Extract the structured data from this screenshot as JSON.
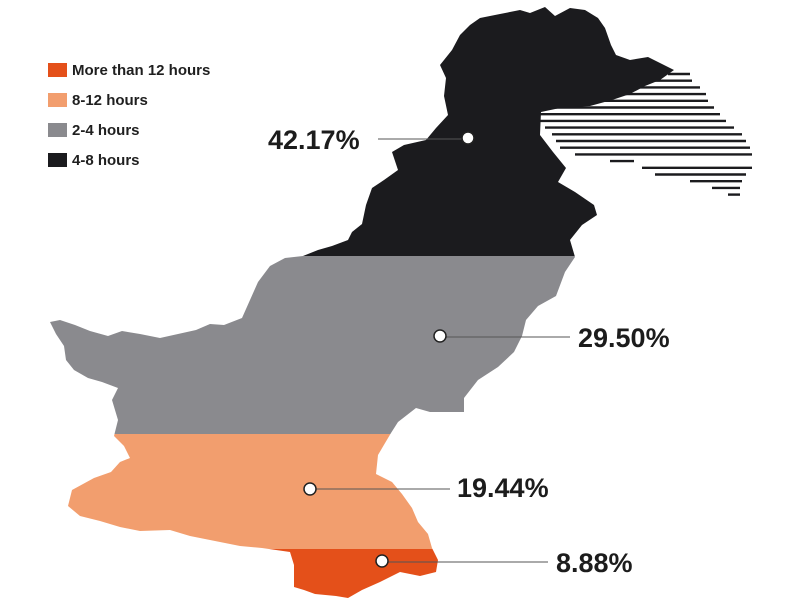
{
  "legend": {
    "items": [
      {
        "label": "More than 12 hours",
        "color": "#e4501a"
      },
      {
        "label": "8-12 hours",
        "color": "#f29e6e"
      },
      {
        "label": "2-4 hours",
        "color": "#8a8a8e"
      },
      {
        "label": "4-8 hours",
        "color": "#1b1b1e"
      }
    ]
  },
  "regions": [
    {
      "id": "north",
      "label": "42.17%",
      "category": "4-8 hours",
      "color": "#1b1b1e"
    },
    {
      "id": "upper-middle",
      "label": "29.50%",
      "category": "2-4 hours",
      "color": "#8a8a8e"
    },
    {
      "id": "lower-middle",
      "label": "19.44%",
      "category": "8-12 hours",
      "color": "#f29e6e"
    },
    {
      "id": "south",
      "label": "8.88%",
      "category": "More than 12 hours",
      "color": "#e4501a"
    }
  ],
  "disputed_area": {
    "pattern": "horizontal-stripes",
    "color": "#1b1b1e"
  }
}
